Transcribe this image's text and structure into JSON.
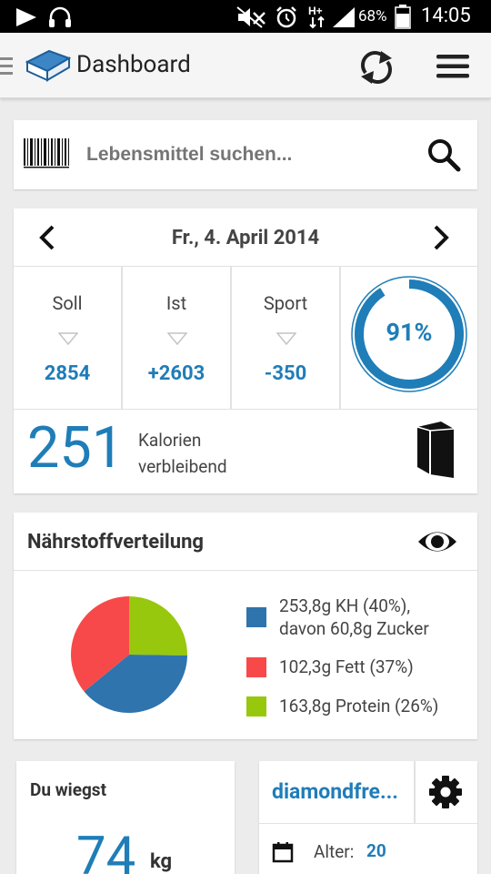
{
  "status_bar": {
    "battery": "68%",
    "time": "14:05",
    "icons": [
      "play-icon",
      "headset-icon",
      "mute-icon",
      "alarm-icon",
      "hplus-data-icon",
      "signal-icon",
      "battery-icon"
    ]
  },
  "app_bar": {
    "title": "Dashboard",
    "icons": [
      "drawer-indicator-icon",
      "book-logo-icon",
      "sync-icon",
      "menu-icon"
    ]
  },
  "search": {
    "placeholder": "Lebensmittel suchen...",
    "icons": [
      "barcode-icon",
      "search-icon"
    ]
  },
  "calories": {
    "date": "Fr., 4. April 2014",
    "stats": [
      {
        "label": "Soll",
        "value": "2854"
      },
      {
        "label": "Ist",
        "value": "+2603"
      },
      {
        "label": "Sport",
        "value": "-350"
      }
    ],
    "progress_label": "91%",
    "progress": 0.91,
    "remaining_value": "251",
    "remaining_line1": "Kalorien",
    "remaining_line2": "verbleibend",
    "accent_color": "#1f7db8"
  },
  "nutrients": {
    "title": "Nährstoffverteilung",
    "legend": [
      {
        "line1": "253,8g KH (40%),",
        "line2": "davon 60,8g Zucker",
        "color": "#2f74ad",
        "share": 0.4
      },
      {
        "line1": "102,3g Fett (37%)",
        "line2": "",
        "color": "#f74949",
        "share": 0.37
      },
      {
        "line1": "163,8g Protein (26%)",
        "line2": "",
        "color": "#97c80d",
        "share": 0.26
      }
    ]
  },
  "weight": {
    "title": "Du wiegst",
    "value": "74",
    "unit": "kg"
  },
  "user": {
    "name": "diamondfre...",
    "age_label": "Alter:",
    "age_value": "20"
  }
}
